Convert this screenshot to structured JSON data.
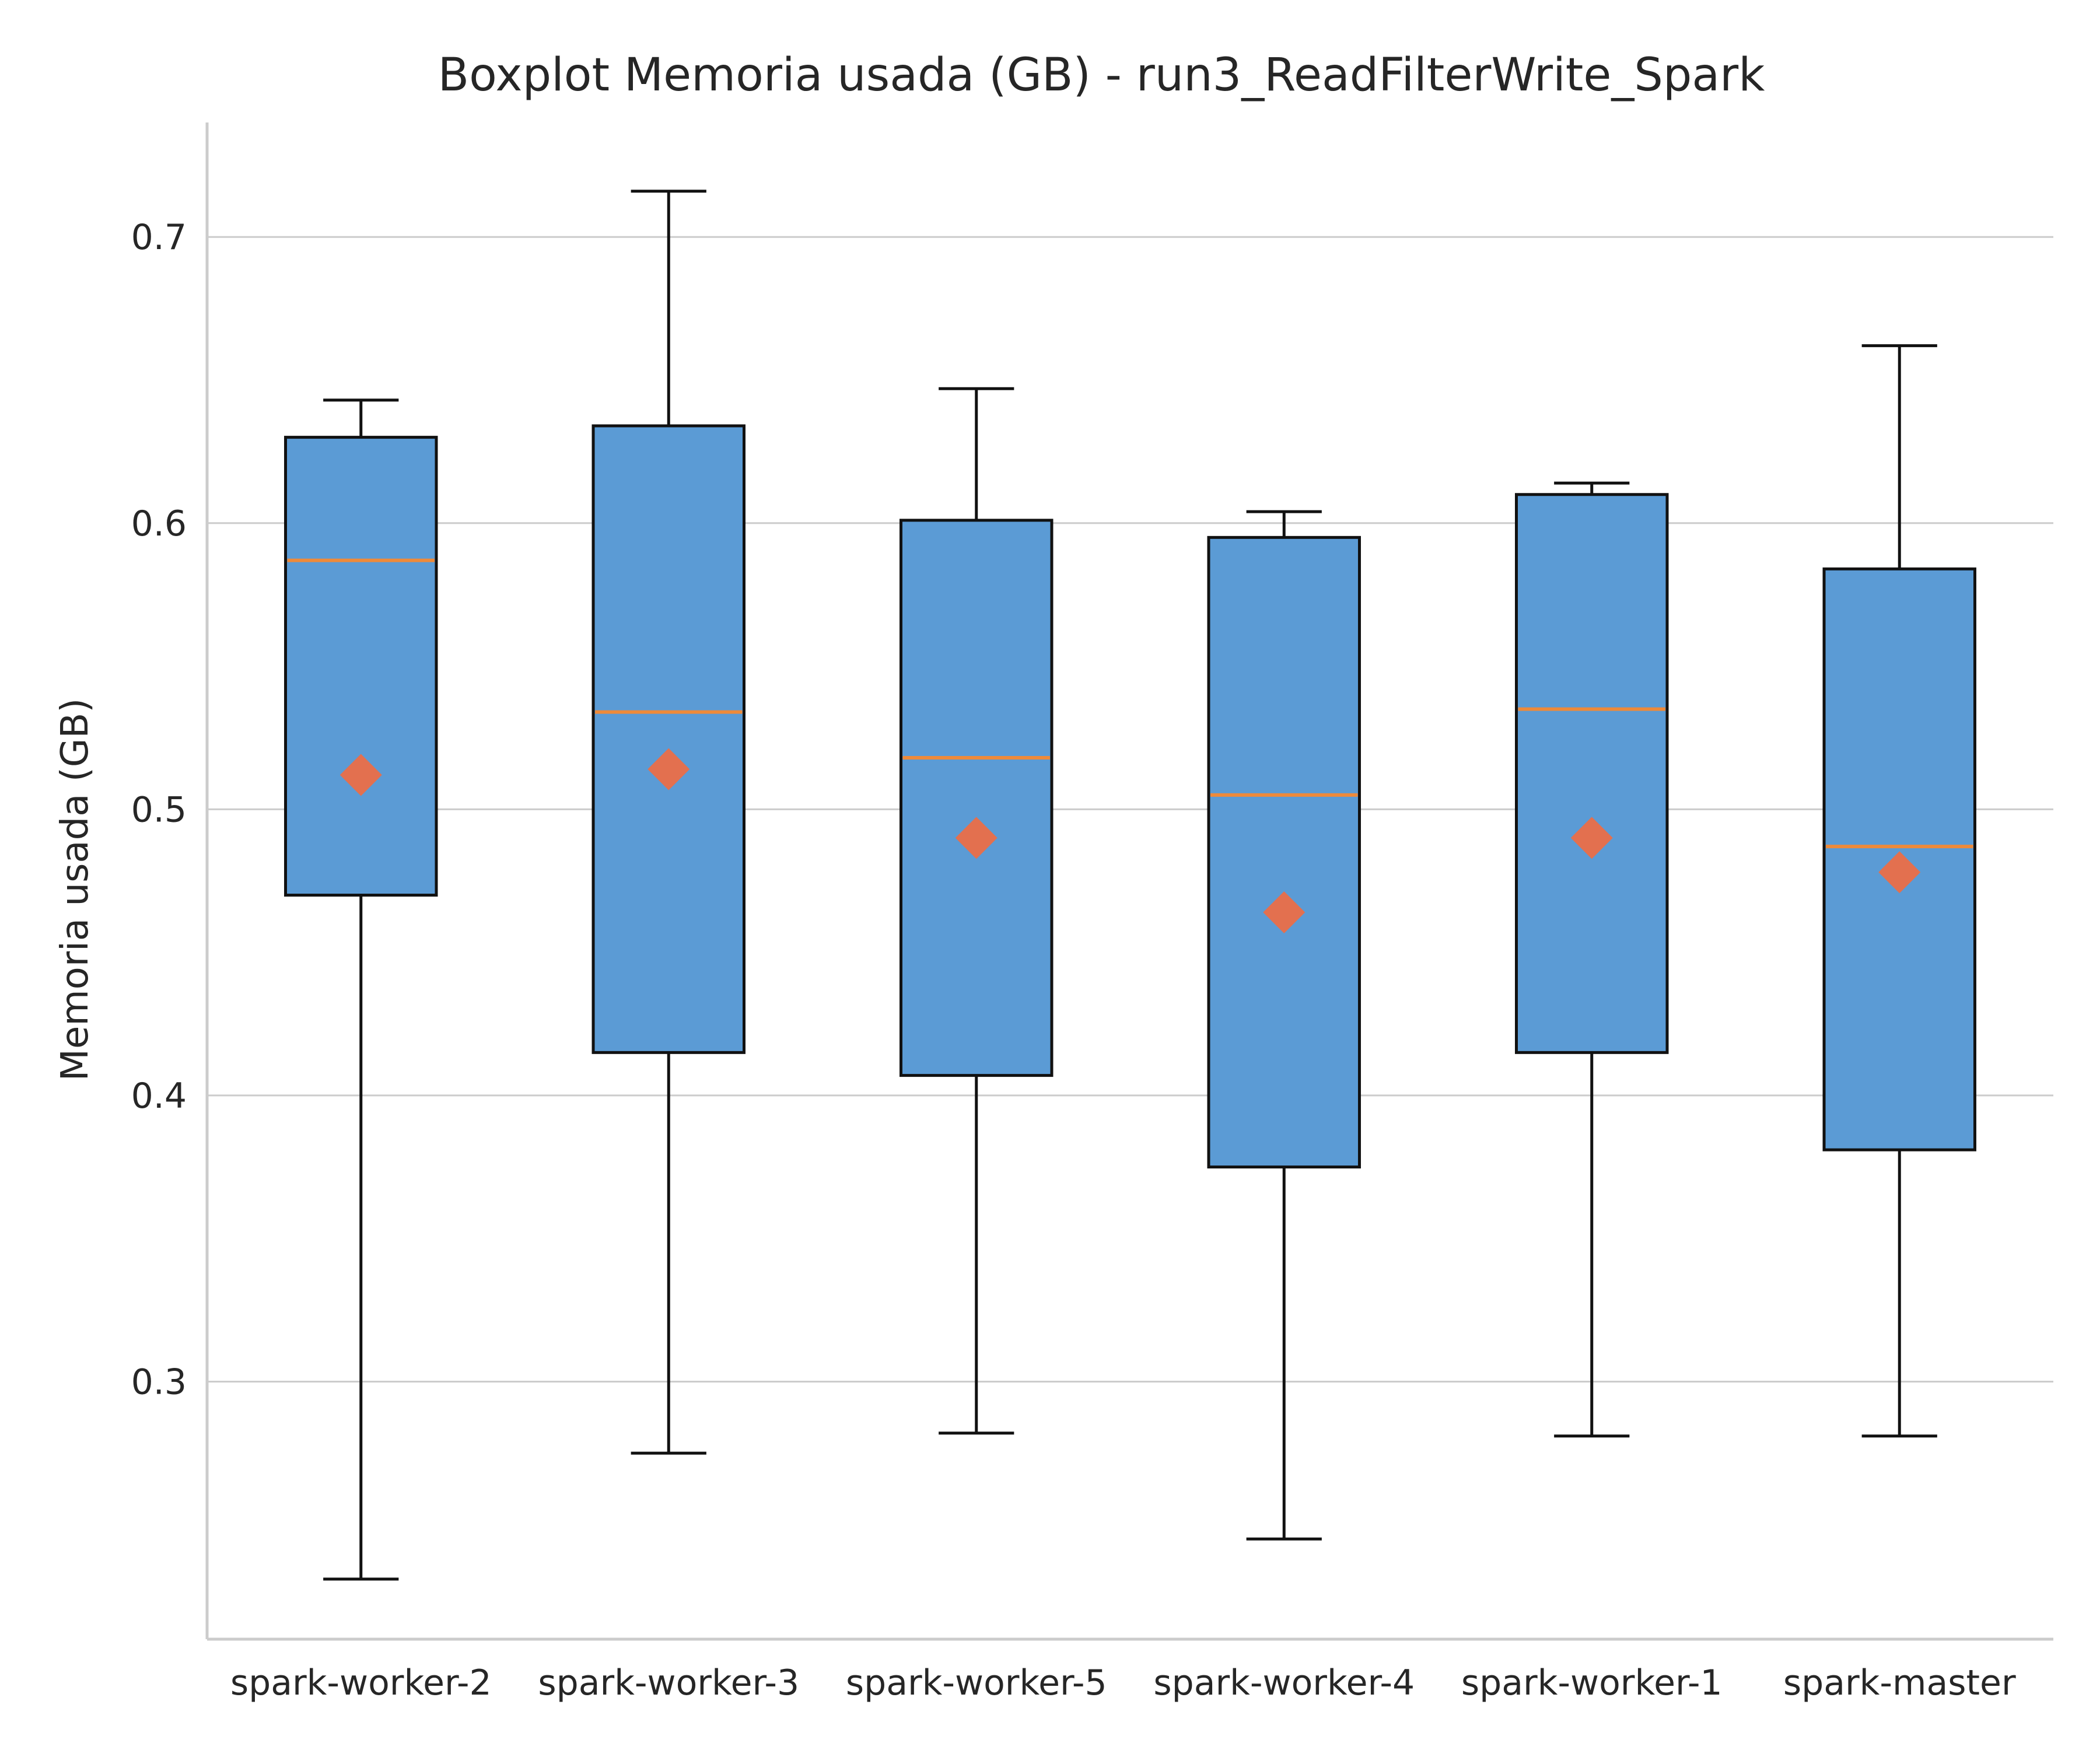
{
  "chart_data": {
    "type": "boxplot",
    "title": "Boxplot Memoria usada (GB) - run3_ReadFilterWrite_Spark",
    "xlabel": "",
    "ylabel": "Memoria usada (GB)",
    "ylim": [
      0.21,
      0.74
    ],
    "yticks": [
      0.3,
      0.4,
      0.5,
      0.6,
      0.7
    ],
    "grid": "y",
    "colors": {
      "box_fill": "#5b9bd5",
      "box_edge": "#111111",
      "median": "#ee8a3a",
      "mean": "#e3704f",
      "grid": "#cccccc"
    },
    "categories": [
      "spark-worker-2",
      "spark-worker-3",
      "spark-worker-5",
      "spark-worker-4",
      "spark-worker-1",
      "spark-master"
    ],
    "boxes": [
      {
        "whisker_low": 0.231,
        "q1": 0.47,
        "median": 0.587,
        "q3": 0.63,
        "whisker_high": 0.643,
        "mean": 0.512
      },
      {
        "whisker_low": 0.275,
        "q1": 0.415,
        "median": 0.534,
        "q3": 0.634,
        "whisker_high": 0.716,
        "mean": 0.514
      },
      {
        "whisker_low": 0.282,
        "q1": 0.407,
        "median": 0.518,
        "q3": 0.601,
        "whisker_high": 0.647,
        "mean": 0.49
      },
      {
        "whisker_low": 0.245,
        "q1": 0.375,
        "median": 0.505,
        "q3": 0.595,
        "whisker_high": 0.604,
        "mean": 0.464
      },
      {
        "whisker_low": 0.281,
        "q1": 0.415,
        "median": 0.535,
        "q3": 0.61,
        "whisker_high": 0.614,
        "mean": 0.49
      },
      {
        "whisker_low": 0.281,
        "q1": 0.381,
        "median": 0.487,
        "q3": 0.584,
        "whisker_high": 0.662,
        "mean": 0.478
      }
    ]
  }
}
